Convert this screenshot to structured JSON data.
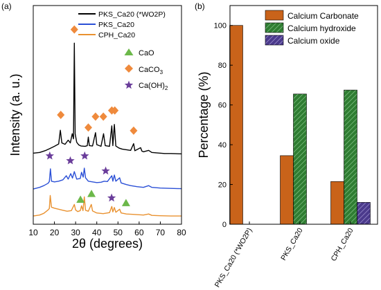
{
  "colors": {
    "black": "#000000",
    "blue": "#2a4fd6",
    "orange": "#e9912f",
    "calcium_carbonate": "#c9631a",
    "calcium_hydroxide": "#2f7d32",
    "calcium_oxide": "#4b3a8c",
    "marker_cao": "#6cb84a",
    "marker_caco3": "#ef8a3c",
    "marker_caoh2": "#6a3d9a"
  },
  "chart_data": [
    {
      "type": "line",
      "panel_label": "(a)",
      "xlabel": "2θ (degrees)",
      "ylabel": "Intensity (a. u.)",
      "xlim": [
        10,
        80
      ],
      "x_ticks": [
        10,
        20,
        30,
        40,
        50,
        60,
        70,
        80
      ],
      "grid": false,
      "legend_position": "top-right",
      "series": [
        {
          "name": "PKS_Ca20 (*WO2P)",
          "color": "#000000",
          "points": [
            [
              10,
              14.8
            ],
            [
              13,
              15.0
            ],
            [
              16,
              15.6
            ],
            [
              18,
              16.2
            ],
            [
              20,
              16.8
            ],
            [
              22,
              17.5
            ],
            [
              22.8,
              21.5
            ],
            [
              23.5,
              17.8
            ],
            [
              25,
              17.4
            ],
            [
              26.5,
              18.6
            ],
            [
              27.5,
              17.8
            ],
            [
              28.4,
              20.5
            ],
            [
              29.0,
              19.0
            ],
            [
              29.4,
              47.0
            ],
            [
              29.8,
              20.5
            ],
            [
              30.5,
              18.0
            ],
            [
              31.5,
              17.2
            ],
            [
              32.5,
              16.9
            ],
            [
              34.5,
              16.8
            ],
            [
              35.5,
              17.0
            ],
            [
              36.0,
              19.5
            ],
            [
              36.5,
              17.0
            ],
            [
              38,
              16.9
            ],
            [
              39.4,
              20.8
            ],
            [
              40.0,
              17.3
            ],
            [
              42,
              16.8
            ],
            [
              43.2,
              20.5
            ],
            [
              44.0,
              17.0
            ],
            [
              46,
              16.8
            ],
            [
              47.1,
              22.8
            ],
            [
              47.6,
              17.0
            ],
            [
              48.3,
              23.2
            ],
            [
              49.0,
              16.9
            ],
            [
              50.5,
              16.3
            ],
            [
              52,
              16.0
            ],
            [
              56,
              15.6
            ],
            [
              57.4,
              17.6
            ],
            [
              58.0,
              15.5
            ],
            [
              60.7,
              16.4
            ],
            [
              61.3,
              15.4
            ],
            [
              62,
              15.2
            ],
            [
              64.5,
              15.6
            ],
            [
              66,
              15.0
            ],
            [
              70,
              14.8
            ],
            [
              72,
              14.7
            ],
            [
              75,
              14.7
            ],
            [
              80,
              14.6
            ]
          ]
        },
        {
          "name": "PKS_Ca20",
          "color": "#2a4fd6",
          "points": [
            [
              10,
              4.3
            ],
            [
              13,
              4.8
            ],
            [
              15,
              5.3
            ],
            [
              17,
              6.0
            ],
            [
              17.6,
              6.5
            ],
            [
              18.1,
              10.2
            ],
            [
              18.6,
              6.6
            ],
            [
              20,
              6.4
            ],
            [
              22,
              6.6
            ],
            [
              24,
              7.0
            ],
            [
              25.6,
              8.2
            ],
            [
              26.5,
              7.2
            ],
            [
              27.7,
              8.8
            ],
            [
              28.5,
              7.5
            ],
            [
              29.4,
              9.4
            ],
            [
              30.5,
              7.2
            ],
            [
              32.2,
              7.4
            ],
            [
              32.8,
              9.2
            ],
            [
              33.6,
              7.8
            ],
            [
              34.1,
              10.4
            ],
            [
              34.7,
              7.6
            ],
            [
              36,
              6.6
            ],
            [
              38,
              6.4
            ],
            [
              40,
              6.2
            ],
            [
              42,
              6.3
            ],
            [
              43.5,
              6.6
            ],
            [
              45,
              6.5
            ],
            [
              47.1,
              8.2
            ],
            [
              47.6,
              6.6
            ],
            [
              48.3,
              8.4
            ],
            [
              49.0,
              6.6
            ],
            [
              50.8,
              7.6
            ],
            [
              51.5,
              6.1
            ],
            [
              54,
              5.6
            ],
            [
              56,
              5.3
            ],
            [
              59,
              5.0
            ],
            [
              62,
              4.8
            ],
            [
              64.5,
              5.3
            ],
            [
              66,
              4.8
            ],
            [
              70,
              4.6
            ],
            [
              75,
              4.5
            ],
            [
              80,
              4.4
            ]
          ]
        },
        {
          "name": "CPH_Ca20",
          "color": "#e9912f",
          "points": [
            [
              10,
              -3.6
            ],
            [
              13,
              -3.3
            ],
            [
              15,
              -2.8
            ],
            [
              17,
              -1.8
            ],
            [
              17.6,
              -1.4
            ],
            [
              18.0,
              2.4
            ],
            [
              18.6,
              -1.0
            ],
            [
              20,
              -1.3
            ],
            [
              22,
              -1.6
            ],
            [
              24,
              -1.9
            ],
            [
              26,
              -2.2
            ],
            [
              28,
              -2.0
            ],
            [
              29.4,
              -0.2
            ],
            [
              30.0,
              -1.8
            ],
            [
              31.0,
              -2.3
            ],
            [
              32.2,
              -2.0
            ],
            [
              32.8,
              -0.6
            ],
            [
              33.5,
              -2.0
            ],
            [
              34.1,
              2.0
            ],
            [
              34.7,
              -1.9
            ],
            [
              36,
              -2.2
            ],
            [
              37.4,
              -0.2
            ],
            [
              38.0,
              -2.1
            ],
            [
              40,
              -2.7
            ],
            [
              43,
              -2.9
            ],
            [
              46,
              -2.6
            ],
            [
              47.1,
              -0.8
            ],
            [
              47.6,
              -2.4
            ],
            [
              48.3,
              -1.1
            ],
            [
              49.0,
              -2.5
            ],
            [
              50.8,
              -1.6
            ],
            [
              51.5,
              -2.7
            ],
            [
              54,
              -3.0
            ],
            [
              57,
              -3.1
            ],
            [
              62,
              -3.3
            ],
            [
              64.5,
              -3.0
            ],
            [
              66,
              -3.4
            ],
            [
              70,
              -3.5
            ],
            [
              75,
              -3.6
            ],
            [
              80,
              -3.6
            ]
          ]
        }
      ],
      "marker_legend": [
        {
          "label": "CaO",
          "symbol": "triangle"
        },
        {
          "label": "CaCO",
          "subscript": "3",
          "symbol": "diamond"
        },
        {
          "label": "Ca(OH)",
          "subscript": "2",
          "symbol": "star"
        }
      ],
      "markers": [
        {
          "symbol": "diamond",
          "x": 29.4,
          "y": 51.0
        },
        {
          "symbol": "diamond",
          "x": 23.0,
          "y": 26.0
        },
        {
          "symbol": "diamond",
          "x": 36.0,
          "y": 22.3
        },
        {
          "symbol": "diamond",
          "x": 39.4,
          "y": 25.5
        },
        {
          "symbol": "diamond",
          "x": 43.1,
          "y": 25.5
        },
        {
          "symbol": "diamond",
          "x": 47.1,
          "y": 27.3
        },
        {
          "symbol": "diamond",
          "x": 48.5,
          "y": 27.3
        },
        {
          "symbol": "diamond",
          "x": 57.4,
          "y": 21.4
        },
        {
          "symbol": "star",
          "x": 17.8,
          "y": 14.0
        },
        {
          "symbol": "star",
          "x": 27.5,
          "y": 12.6
        },
        {
          "symbol": "star",
          "x": 34.3,
          "y": 14.0
        },
        {
          "symbol": "star",
          "x": 44.2,
          "y": 9.6
        },
        {
          "symbol": "star",
          "x": 47.0,
          "y": 1.7
        },
        {
          "symbol": "triangle",
          "x": 32.3,
          "y": 1.3
        },
        {
          "symbol": "triangle",
          "x": 37.5,
          "y": 3.0
        },
        {
          "symbol": "triangle",
          "x": 53.8,
          "y": 0.3
        }
      ]
    },
    {
      "type": "bar",
      "panel_label": "(b)",
      "ylabel": "Percentage (%)",
      "ylim": [
        0,
        110
      ],
      "y_ticks": [
        0,
        20,
        40,
        60,
        80,
        100
      ],
      "categories": [
        "PKS_Ca20 (*WO2P)",
        "PKS_Ca20",
        "CPH_Ca20"
      ],
      "grid": false,
      "legend_position": "top",
      "series": [
        {
          "name": "Calcium Carbonate",
          "values": [
            100,
            34.5,
            21.5
          ]
        },
        {
          "name": "Calcium hydroxide",
          "values": [
            0,
            65.5,
            67.5
          ]
        },
        {
          "name": "Calcium oxide",
          "values": [
            0,
            0,
            11
          ]
        }
      ]
    }
  ]
}
